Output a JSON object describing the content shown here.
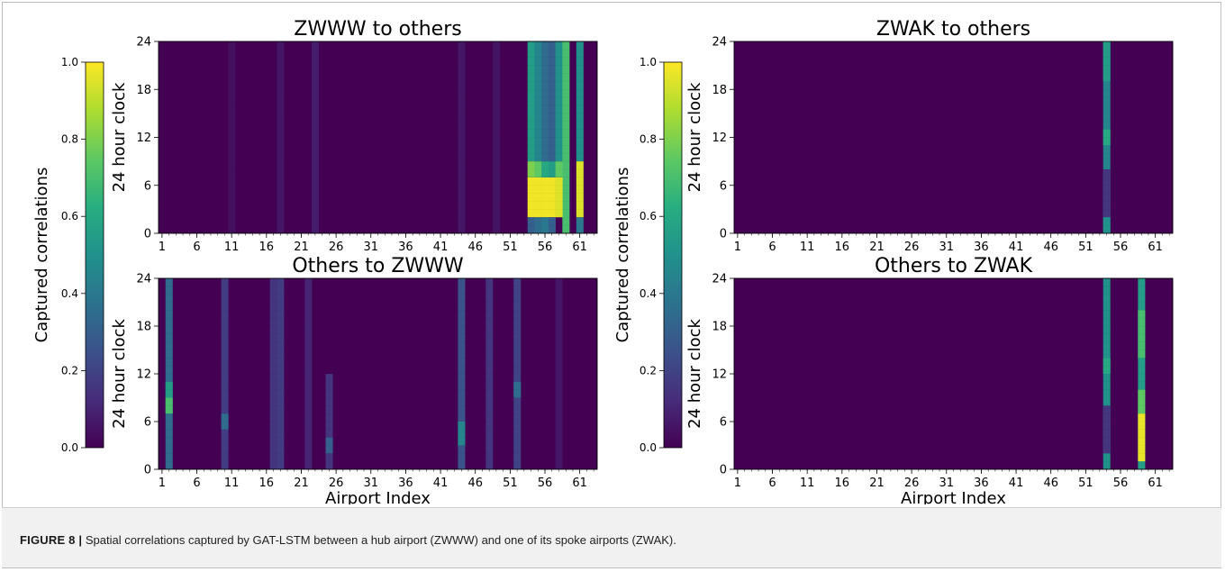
{
  "caption": {
    "label": "FIGURE 8 |",
    "text": "Spatial correlations captured by GAT-LSTM between a hub airport (ZWWW) and one of its spoke airports (ZWAK)."
  },
  "colorbars": [
    {
      "label": "Captured correlations",
      "ticks": [
        "0.0",
        "0.2",
        "0.4",
        "0.6",
        "0.8",
        "1.0"
      ]
    },
    {
      "label": "Captured correlations",
      "ticks": [
        "0.0",
        "0.2",
        "0.4",
        "0.6",
        "0.8",
        "1.0"
      ]
    }
  ],
  "chart_data": [
    {
      "type": "heatmap",
      "title": "ZWWW to others",
      "xlabel": "",
      "ylabel": "24 hour clock",
      "xticks": [
        "1",
        "6",
        "11",
        "16",
        "21",
        "26",
        "31",
        "36",
        "41",
        "46",
        "51",
        "56",
        "61"
      ],
      "yticks": [
        "0",
        "6",
        "12",
        "18",
        "24"
      ],
      "xlim": [
        1,
        63
      ],
      "ylim": [
        0,
        24
      ],
      "colormap": "viridis",
      "vlim": [
        0,
        1
      ],
      "base_level": 0.0,
      "columns": [
        {
          "airport": 11,
          "level": 0.04,
          "from_hour": 0,
          "to_hour": 24
        },
        {
          "airport": 18,
          "level": 0.06,
          "from_hour": 0,
          "to_hour": 24
        },
        {
          "airport": 23,
          "level": 0.08,
          "from_hour": 0,
          "to_hour": 24
        },
        {
          "airport": 44,
          "level": 0.06,
          "from_hour": 0,
          "to_hour": 24
        },
        {
          "airport": 49,
          "level": 0.05,
          "from_hour": 0,
          "to_hour": 24
        },
        {
          "airport": 54,
          "level": 0.55,
          "from_hour": 9,
          "to_hour": 24
        },
        {
          "airport": 55,
          "level": 0.45,
          "from_hour": 9,
          "to_hour": 24
        },
        {
          "airport": 56,
          "level": 0.35,
          "from_hour": 9,
          "to_hour": 24
        },
        {
          "airport": 57,
          "level": 0.3,
          "from_hour": 9,
          "to_hour": 24
        },
        {
          "airport": 58,
          "level": 0.5,
          "from_hour": 9,
          "to_hour": 24
        },
        {
          "airport": 59,
          "level": 0.7,
          "from_hour": 0,
          "to_hour": 24
        },
        {
          "airport": 61,
          "level": 0.5,
          "from_hour": 9,
          "to_hour": 24
        },
        {
          "airport": 54,
          "level": 0.98,
          "from_hour": 2,
          "to_hour": 7
        },
        {
          "airport": 55,
          "level": 0.98,
          "from_hour": 2,
          "to_hour": 7
        },
        {
          "airport": 56,
          "level": 0.98,
          "from_hour": 2,
          "to_hour": 7
        },
        {
          "airport": 57,
          "level": 0.98,
          "from_hour": 2,
          "to_hour": 7
        },
        {
          "airport": 58,
          "level": 0.95,
          "from_hour": 2,
          "to_hour": 7
        },
        {
          "airport": 61,
          "level": 0.95,
          "from_hour": 2,
          "to_hour": 9
        },
        {
          "airport": 54,
          "level": 0.8,
          "from_hour": 7,
          "to_hour": 9
        },
        {
          "airport": 55,
          "level": 0.75,
          "from_hour": 7,
          "to_hour": 9
        },
        {
          "airport": 56,
          "level": 0.6,
          "from_hour": 7,
          "to_hour": 9
        },
        {
          "airport": 57,
          "level": 0.55,
          "from_hour": 7,
          "to_hour": 9
        },
        {
          "airport": 58,
          "level": 0.75,
          "from_hour": 7,
          "to_hour": 9
        },
        {
          "airport": 54,
          "level": 0.3,
          "from_hour": 0,
          "to_hour": 2
        },
        {
          "airport": 55,
          "level": 0.35,
          "from_hour": 0,
          "to_hour": 2
        },
        {
          "airport": 56,
          "level": 0.4,
          "from_hour": 0,
          "to_hour": 2
        },
        {
          "airport": 57,
          "level": 0.3,
          "from_hour": 0,
          "to_hour": 2
        },
        {
          "airport": 61,
          "level": 0.4,
          "from_hour": 0,
          "to_hour": 2
        }
      ]
    },
    {
      "type": "heatmap",
      "title": "ZWAK to others",
      "xlabel": "",
      "ylabel": "24 hour clock",
      "xticks": [
        "1",
        "6",
        "11",
        "16",
        "21",
        "26",
        "31",
        "36",
        "41",
        "46",
        "51",
        "56",
        "61"
      ],
      "yticks": [
        "0",
        "6",
        "12",
        "18",
        "24"
      ],
      "xlim": [
        1,
        63
      ],
      "ylim": [
        0,
        24
      ],
      "colormap": "viridis",
      "vlim": [
        0,
        1
      ],
      "base_level": 0.0,
      "columns": [
        {
          "airport": 54,
          "level": 0.45,
          "from_hour": 0,
          "to_hour": 24
        },
        {
          "airport": 54,
          "level": 0.6,
          "from_hour": 11,
          "to_hour": 13
        },
        {
          "airport": 54,
          "level": 0.55,
          "from_hour": 19,
          "to_hour": 24
        },
        {
          "airport": 54,
          "level": 0.15,
          "from_hour": 2,
          "to_hour": 8
        },
        {
          "airport": 54,
          "level": 0.5,
          "from_hour": 0,
          "to_hour": 2
        }
      ]
    },
    {
      "type": "heatmap",
      "title": "Others to ZWWW",
      "xlabel": "Airport Index",
      "ylabel": "24 hour clock",
      "xticks": [
        "1",
        "6",
        "11",
        "16",
        "21",
        "26",
        "31",
        "36",
        "41",
        "46",
        "51",
        "56",
        "61"
      ],
      "yticks": [
        "0",
        "6",
        "12",
        "18",
        "24"
      ],
      "xlim": [
        1,
        63
      ],
      "ylim": [
        0,
        24
      ],
      "colormap": "viridis",
      "vlim": [
        0,
        1
      ],
      "base_level": 0.0,
      "columns": [
        {
          "airport": 2,
          "level": 0.35,
          "from_hour": 0,
          "to_hour": 24
        },
        {
          "airport": 2,
          "level": 0.7,
          "from_hour": 7,
          "to_hour": 9
        },
        {
          "airport": 2,
          "level": 0.55,
          "from_hour": 9,
          "to_hour": 11
        },
        {
          "airport": 10,
          "level": 0.18,
          "from_hour": 0,
          "to_hour": 24
        },
        {
          "airport": 10,
          "level": 0.35,
          "from_hour": 5,
          "to_hour": 7
        },
        {
          "airport": 17,
          "level": 0.15,
          "from_hour": 0,
          "to_hour": 24
        },
        {
          "airport": 18,
          "level": 0.18,
          "from_hour": 0,
          "to_hour": 24
        },
        {
          "airport": 22,
          "level": 0.1,
          "from_hour": 0,
          "to_hour": 24
        },
        {
          "airport": 25,
          "level": 0.15,
          "from_hour": 0,
          "to_hour": 12
        },
        {
          "airport": 25,
          "level": 0.3,
          "from_hour": 2,
          "to_hour": 4
        },
        {
          "airport": 44,
          "level": 0.25,
          "from_hour": 0,
          "to_hour": 24
        },
        {
          "airport": 44,
          "level": 0.45,
          "from_hour": 3,
          "to_hour": 6
        },
        {
          "airport": 48,
          "level": 0.15,
          "from_hour": 0,
          "to_hour": 24
        },
        {
          "airport": 52,
          "level": 0.2,
          "from_hour": 0,
          "to_hour": 24
        },
        {
          "airport": 52,
          "level": 0.35,
          "from_hour": 9,
          "to_hour": 11
        },
        {
          "airport": 58,
          "level": 0.06,
          "from_hour": 0,
          "to_hour": 24
        }
      ]
    },
    {
      "type": "heatmap",
      "title": "Others to ZWAK",
      "xlabel": "Airport Index",
      "ylabel": "24 hour clock",
      "xticks": [
        "1",
        "6",
        "11",
        "16",
        "21",
        "26",
        "31",
        "36",
        "41",
        "46",
        "51",
        "56",
        "61"
      ],
      "yticks": [
        "0",
        "6",
        "12",
        "18",
        "24"
      ],
      "xlim": [
        1,
        63
      ],
      "ylim": [
        0,
        24
      ],
      "colormap": "viridis",
      "vlim": [
        0,
        1
      ],
      "base_level": 0.0,
      "columns": [
        {
          "airport": 54,
          "level": 0.5,
          "from_hour": 0,
          "to_hour": 24
        },
        {
          "airport": 54,
          "level": 0.15,
          "from_hour": 2,
          "to_hour": 8
        },
        {
          "airport": 54,
          "level": 0.6,
          "from_hour": 12,
          "to_hour": 14
        },
        {
          "airport": 59,
          "level": 0.55,
          "from_hour": 0,
          "to_hour": 24
        },
        {
          "airport": 59,
          "level": 0.7,
          "from_hour": 14,
          "to_hour": 20
        },
        {
          "airport": 59,
          "level": 0.75,
          "from_hour": 7,
          "to_hour": 10
        },
        {
          "airport": 59,
          "level": 0.97,
          "from_hour": 1,
          "to_hour": 7
        }
      ]
    }
  ]
}
